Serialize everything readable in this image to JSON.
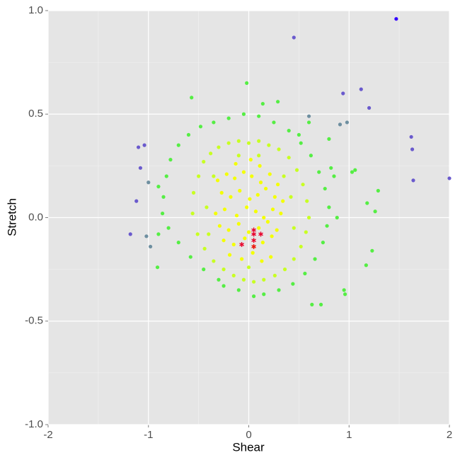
{
  "chart_data": {
    "type": "scatter",
    "x_label": "Shear",
    "y_label": "Stretch",
    "xlim": [
      -2,
      2
    ],
    "ylim": [
      -1.0,
      1.0
    ],
    "xticks": [
      -2,
      -1,
      0,
      1,
      2
    ],
    "yticks": [
      {
        "value": -1.0,
        "label": "-1.0"
      },
      {
        "value": -0.5,
        "label": "-0.5"
      },
      {
        "value": 0.0,
        "label": "0.0"
      },
      {
        "value": 0.5,
        "label": "0.5"
      },
      {
        "value": 1.0,
        "label": "1.0"
      }
    ],
    "grid": true,
    "series": [
      {
        "color": "#55ee44",
        "marker": "circle",
        "x": [
          -0.85,
          -0.82,
          -0.78,
          -0.7,
          -0.6,
          -0.48,
          -0.35,
          -0.2,
          -0.05,
          0.1,
          0.25,
          0.4,
          0.52,
          0.62,
          0.7,
          0.76,
          0.8,
          0.78,
          0.74,
          0.66,
          0.56,
          0.44,
          0.3,
          0.15,
          -0.3,
          -0.45,
          -0.58,
          -0.7,
          -0.8,
          -0.86,
          -0.9,
          -0.9,
          0.85,
          0.88,
          -0.25,
          0.05,
          -0.1,
          0.5,
          -0.57,
          -0.02,
          0.29,
          0.14,
          1.29,
          1.18,
          1.26,
          1.23,
          1.17,
          0.95,
          0.96,
          0.63,
          0.72,
          1.06,
          1.03,
          0.82,
          0.8,
          -0.91,
          0.6
        ],
        "values": [
          0.1,
          0.2,
          0.28,
          0.35,
          0.4,
          0.44,
          0.46,
          0.48,
          0.5,
          0.49,
          0.46,
          0.42,
          0.36,
          0.3,
          0.22,
          0.14,
          0.05,
          -0.04,
          -0.12,
          -0.2,
          -0.27,
          -0.32,
          -0.35,
          -0.37,
          -0.3,
          -0.25,
          -0.19,
          -0.12,
          -0.05,
          0.02,
          -0.08,
          0.15,
          0.2,
          0.0,
          -0.33,
          -0.38,
          -0.35,
          0.4,
          0.58,
          0.65,
          0.56,
          0.55,
          0.13,
          0.07,
          0.03,
          -0.16,
          -0.23,
          -0.35,
          -0.37,
          -0.42,
          -0.42,
          0.23,
          0.22,
          0.24,
          0.38,
          -0.24,
          0.46
        ]
      },
      {
        "color": "#c8ff22",
        "marker": "circle",
        "x": [
          -0.55,
          -0.5,
          -0.45,
          -0.38,
          -0.3,
          -0.2,
          -0.1,
          0.0,
          0.1,
          0.2,
          0.3,
          0.4,
          0.48,
          0.54,
          0.58,
          0.6,
          0.57,
          0.52,
          0.45,
          0.36,
          0.26,
          0.15,
          0.05,
          -0.05,
          -0.15,
          -0.25,
          -0.35,
          -0.44,
          -0.51,
          -0.56,
          -0.42,
          -0.4,
          0.42,
          0.45,
          -0.35,
          0.35,
          0.0,
          0.1,
          -0.1
        ],
        "values": [
          0.12,
          0.2,
          0.27,
          0.31,
          0.34,
          0.36,
          0.37,
          0.36,
          0.37,
          0.35,
          0.33,
          0.29,
          0.23,
          0.16,
          0.08,
          0.0,
          -0.07,
          -0.14,
          -0.2,
          -0.25,
          -0.28,
          -0.3,
          -0.31,
          -0.3,
          -0.28,
          -0.25,
          -0.21,
          -0.15,
          -0.08,
          0.02,
          0.05,
          -0.08,
          0.1,
          -0.05,
          0.2,
          0.2,
          -0.24,
          0.3,
          0.3
        ]
      },
      {
        "color": "#f4ff00",
        "marker": "circle",
        "x": [
          -0.31,
          -0.22,
          -0.14,
          -0.05,
          0.03,
          0.12,
          0.21,
          0.29,
          -0.27,
          -0.18,
          -0.09,
          0.01,
          0.09,
          0.17,
          0.26,
          0.34,
          -0.33,
          -0.24,
          -0.12,
          -0.02,
          0.07,
          0.15,
          0.24,
          0.32,
          -0.29,
          -0.2,
          -0.1,
          0.0,
          0.1,
          0.19,
          0.28,
          -0.25,
          -0.15,
          -0.04,
          0.05,
          0.14,
          0.23,
          -0.19,
          -0.07,
          0.04,
          0.13,
          0.22,
          -0.13,
          0.02,
          0.11
        ],
        "values": [
          0.18,
          0.21,
          0.19,
          0.22,
          0.2,
          0.17,
          0.21,
          0.16,
          0.12,
          0.1,
          0.13,
          0.09,
          0.11,
          0.14,
          0.1,
          0.08,
          0.02,
          0.04,
          0.01,
          0.05,
          0.03,
          0.0,
          0.04,
          0.02,
          -0.04,
          -0.06,
          -0.03,
          -0.07,
          -0.05,
          -0.02,
          -0.06,
          -0.11,
          -0.13,
          -0.1,
          -0.14,
          -0.12,
          -0.09,
          -0.18,
          -0.2,
          -0.17,
          -0.21,
          -0.19,
          0.26,
          0.28,
          0.25
        ]
      },
      {
        "color": "#6e8fa0",
        "marker": "circle",
        "x": [
          0.98,
          0.91,
          0.6,
          -1.0,
          -1.02,
          -0.98
        ],
        "values": [
          0.46,
          0.45,
          0.49,
          0.17,
          -0.09,
          -0.14
        ]
      },
      {
        "color": "#6a5acd",
        "marker": "circle",
        "x": [
          0.45,
          0.94,
          1.12,
          1.2,
          1.62,
          1.63,
          1.64,
          2.0,
          -1.1,
          -1.04,
          -1.08,
          -1.18,
          -1.12
        ],
        "values": [
          0.87,
          0.6,
          0.62,
          0.53,
          0.39,
          0.33,
          0.18,
          0.19,
          0.34,
          0.35,
          0.24,
          -0.08,
          0.08
        ]
      },
      {
        "color": "#3300ff",
        "marker": "circle",
        "x": [
          1.47
        ],
        "values": [
          0.96
        ]
      },
      {
        "color": "#e8002a",
        "marker": "asterisk",
        "x": [
          0.05,
          0.05,
          0.12,
          0.05,
          -0.07,
          0.05
        ],
        "values": [
          -0.06,
          -0.08,
          -0.08,
          -0.11,
          -0.13,
          -0.14
        ]
      }
    ]
  }
}
